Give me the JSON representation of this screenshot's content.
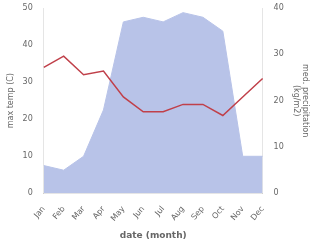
{
  "chart_data": {
    "type": "line",
    "xlabel": "date (month)",
    "ylabel": "max temp (C)",
    "y2label": "med. precipitation\n(kg/m2)",
    "categories": [
      "Jan",
      "Feb",
      "Mar",
      "Apr",
      "May",
      "Jun",
      "Jul",
      "Aug",
      "Sep",
      "Oct",
      "Nov",
      "Dec"
    ],
    "series": [
      {
        "type": "line",
        "color": "#c0404a",
        "values": [
          34,
          37,
          32,
          33,
          26,
          22,
          22,
          24,
          24,
          21,
          26,
          31
        ]
      },
      {
        "type": "area",
        "color": "#b8c3e8",
        "axis": "y2",
        "values": [
          6,
          5,
          8,
          18,
          37,
          38,
          37,
          39,
          38,
          35,
          8,
          8
        ]
      }
    ],
    "ylim": [
      0,
      50
    ],
    "yticks": [
      0,
      10,
      20,
      30,
      40,
      50
    ],
    "y2lim": [
      0,
      40
    ],
    "y2ticks": [
      0,
      10,
      20,
      30,
      40
    ],
    "grid": false
  }
}
